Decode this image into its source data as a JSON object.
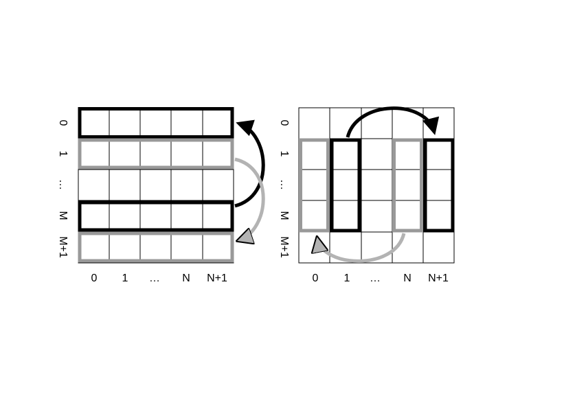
{
  "left_grid": {
    "column_labels": [
      "0",
      "1",
      "…",
      "N",
      "N+1"
    ],
    "row_labels": [
      "0",
      "1",
      "…",
      "M",
      "M+1"
    ]
  },
  "right_grid": {
    "column_labels": [
      "0",
      "1",
      "…",
      "N",
      "N+1"
    ],
    "row_labels": [
      "0",
      "1",
      "…",
      "M",
      "M+1"
    ]
  },
  "colors": {
    "grid_line": "#000000",
    "highlight_dark": "#000000",
    "highlight_light": "#999999",
    "arrow_light": "#b3b3b3"
  }
}
